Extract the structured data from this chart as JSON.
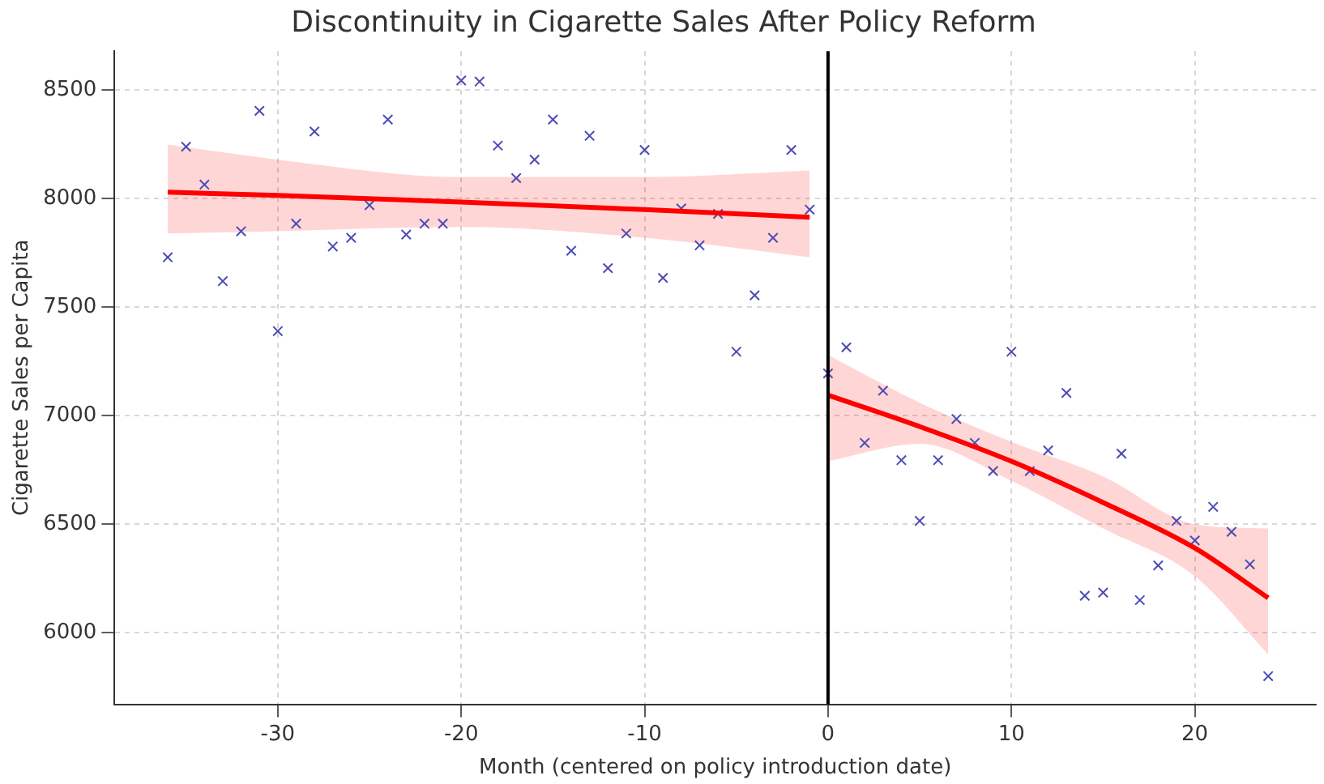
{
  "chart_data": {
    "type": "scatter",
    "title": "Discontinuity in Cigarette Sales After Policy Reform",
    "xlabel": "Month (centered on policy introduction date)",
    "ylabel": "Cigarette Sales per Capita",
    "xlim": [
      -38.9,
      26.6
    ],
    "xticks": [
      -30,
      -20,
      -10,
      0,
      10,
      20
    ],
    "ylim": [
      5670,
      8680
    ],
    "yticks": [
      6000,
      6500,
      7000,
      7500,
      8000,
      8500
    ],
    "grid": true,
    "legend": false,
    "series": [
      {
        "marker": "cross",
        "color": "#4b4bb4",
        "x": [
          -36,
          -35,
          -34,
          -33,
          -32,
          -31,
          -30,
          -29,
          -28,
          -27,
          -26,
          -25,
          -24,
          -23,
          -22,
          -21,
          -20,
          -19,
          -18,
          -17,
          -16,
          -15,
          -14,
          -13,
          -12,
          -11,
          -10,
          -9,
          -8,
          -7,
          -6,
          -5,
          -4,
          -3,
          -2,
          -1,
          0,
          1,
          2,
          3,
          4,
          5,
          6,
          7,
          8,
          9,
          10,
          11,
          12,
          13,
          14,
          15,
          16,
          17,
          18,
          19,
          20,
          21,
          22,
          23,
          24
        ],
        "values": [
          7730,
          8240,
          8065,
          7620,
          7850,
          8405,
          7390,
          7885,
          8310,
          7780,
          7820,
          7970,
          8365,
          7835,
          7885,
          7885,
          8545,
          8540,
          8245,
          8095,
          8180,
          8365,
          7760,
          8290,
          7680,
          7840,
          8225,
          7635,
          7955,
          7785,
          7930,
          7295,
          7555,
          7820,
          8225,
          7950,
          7195,
          7315,
          6875,
          7115,
          6795,
          6515,
          6795,
          6985,
          6875,
          6745,
          7295,
          6745,
          6840,
          7105,
          6170,
          6185,
          6825,
          6150,
          6310,
          6515,
          6425,
          6580,
          6465,
          6315,
          5800
        ]
      },
      {
        "type": "line",
        "color": "#ff0000",
        "x": [
          -36,
          -30,
          -20,
          -10,
          -1
        ],
        "values": [
          8030,
          8015,
          7985,
          7950,
          7915
        ],
        "lower": [
          7840,
          7850,
          7870,
          7820,
          7730
        ],
        "upper": [
          8250,
          8180,
          8100,
          8100,
          8130
        ]
      },
      {
        "type": "line",
        "color": "#ff0000",
        "x": [
          0,
          5,
          10,
          15,
          20,
          24
        ],
        "values": [
          7095,
          6950,
          6790,
          6600,
          6390,
          6160
        ],
        "lower": [
          6790,
          6870,
          6700,
          6480,
          6260,
          5900
        ],
        "upper": [
          7280,
          7060,
          6880,
          6720,
          6500,
          6480
        ]
      }
    ],
    "ref_lines": [
      {
        "axis": "x",
        "value": 0,
        "color": "#000000"
      }
    ]
  }
}
